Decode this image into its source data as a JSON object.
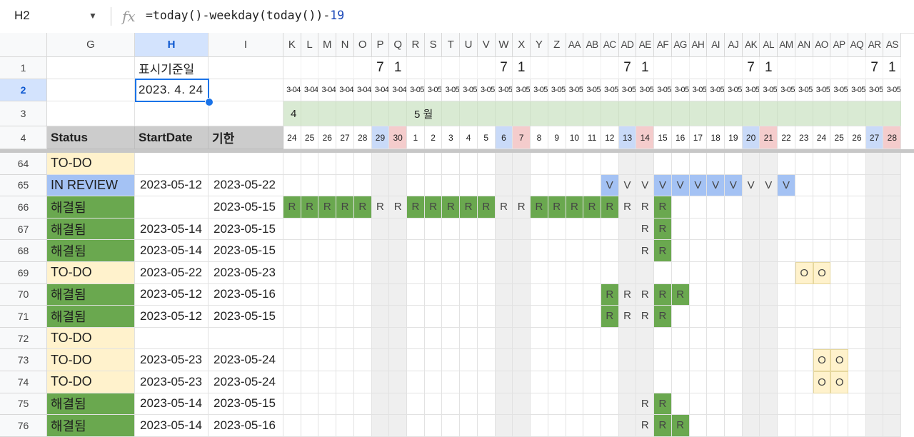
{
  "formula_bar": {
    "name_box": "H2",
    "fx_icon": "fx-icon",
    "formula_prefix": "=today()-weekday(today())-",
    "formula_number": "19"
  },
  "columns": {
    "G": "G",
    "H": "H",
    "I": "I",
    "gantt": [
      "K",
      "L",
      "M",
      "N",
      "O",
      "P",
      "Q",
      "R",
      "S",
      "T",
      "U",
      "V",
      "W",
      "X",
      "Y",
      "Z",
      "AA",
      "AB",
      "AC",
      "AD",
      "AE",
      "AF",
      "AG",
      "AH",
      "AI",
      "AJ",
      "AK",
      "AL",
      "AM",
      "AN",
      "AO",
      "AP",
      "AQ",
      "AR",
      "AS"
    ]
  },
  "header_rows": {
    "row1": {
      "label": "표시기준일",
      "week_marks": [
        "",
        "",
        "",
        "",
        "",
        "7",
        "1",
        "",
        "",
        "",
        "",
        "",
        "7",
        "1",
        "",
        "",
        "",
        "",
        "",
        "7",
        "1",
        "",
        "",
        "",
        "",
        "",
        "7",
        "1",
        "",
        "",
        "",
        "",
        "",
        "7",
        "1"
      ]
    },
    "row2": {
      "base_date": "2023. 4. 24",
      "date_stub_april": "3-04",
      "date_stub_may": "3-05"
    },
    "row3": {
      "month_april": "4",
      "month_may": "5 월"
    },
    "row4": {
      "status": "Status",
      "start": "StartDate",
      "due": "기한",
      "days": [
        "24",
        "25",
        "26",
        "27",
        "28",
        "29",
        "30",
        "1",
        "2",
        "3",
        "4",
        "5",
        "6",
        "7",
        "8",
        "9",
        "10",
        "11",
        "12",
        "13",
        "14",
        "15",
        "16",
        "17",
        "18",
        "19",
        "20",
        "21",
        "22",
        "23",
        "24",
        "25",
        "26",
        "27",
        "28"
      ]
    }
  },
  "colors": {
    "todo": "#fff2cc",
    "in_review": "#a4c2f4",
    "resolved": "#6aa84f",
    "saturday": "#c9daf8",
    "sunday": "#f4cccc",
    "weekend_col": "#efefef",
    "month_band": "#d9ead3",
    "header_bg": "#cccccc",
    "o_mark": "#fff2cc",
    "selection": "#1a73e8"
  },
  "rows": [
    {
      "num": "64",
      "status": "TO-DO",
      "status_key": "todo",
      "start": "",
      "due": "",
      "marks": []
    },
    {
      "num": "65",
      "status": "IN REVIEW",
      "status_key": "in_review",
      "start": "2023-05-12",
      "due": "2023-05-22",
      "marks": [
        {
          "col": "AC",
          "ch": "V",
          "fill": true
        },
        {
          "col": "AD",
          "ch": "V",
          "fill": false
        },
        {
          "col": "AE",
          "ch": "V",
          "fill": false
        },
        {
          "col": "AF",
          "ch": "V",
          "fill": true
        },
        {
          "col": "AG",
          "ch": "V",
          "fill": true
        },
        {
          "col": "AH",
          "ch": "V",
          "fill": true
        },
        {
          "col": "AI",
          "ch": "V",
          "fill": true
        },
        {
          "col": "AJ",
          "ch": "V",
          "fill": true
        },
        {
          "col": "AK",
          "ch": "V",
          "fill": false
        },
        {
          "col": "AL",
          "ch": "V",
          "fill": false
        },
        {
          "col": "AM",
          "ch": "V",
          "fill": true
        }
      ]
    },
    {
      "num": "66",
      "status": "해결됨",
      "status_key": "resolved",
      "start": "",
      "due": "2023-05-15",
      "marks": [
        {
          "col": "K",
          "ch": "R",
          "fill": true
        },
        {
          "col": "L",
          "ch": "R",
          "fill": true
        },
        {
          "col": "M",
          "ch": "R",
          "fill": true
        },
        {
          "col": "N",
          "ch": "R",
          "fill": true
        },
        {
          "col": "O",
          "ch": "R",
          "fill": true
        },
        {
          "col": "P",
          "ch": "R",
          "fill": false
        },
        {
          "col": "Q",
          "ch": "R",
          "fill": false
        },
        {
          "col": "R",
          "ch": "R",
          "fill": true
        },
        {
          "col": "S",
          "ch": "R",
          "fill": true
        },
        {
          "col": "T",
          "ch": "R",
          "fill": true
        },
        {
          "col": "U",
          "ch": "R",
          "fill": true
        },
        {
          "col": "V",
          "ch": "R",
          "fill": true
        },
        {
          "col": "W",
          "ch": "R",
          "fill": false
        },
        {
          "col": "X",
          "ch": "R",
          "fill": false
        },
        {
          "col": "Y",
          "ch": "R",
          "fill": true
        },
        {
          "col": "Z",
          "ch": "R",
          "fill": true
        },
        {
          "col": "AA",
          "ch": "R",
          "fill": true
        },
        {
          "col": "AB",
          "ch": "R",
          "fill": true
        },
        {
          "col": "AC",
          "ch": "R",
          "fill": true
        },
        {
          "col": "AD",
          "ch": "R",
          "fill": false
        },
        {
          "col": "AE",
          "ch": "R",
          "fill": false
        },
        {
          "col": "AF",
          "ch": "R",
          "fill": true
        }
      ]
    },
    {
      "num": "67",
      "status": "해결됨",
      "status_key": "resolved",
      "start": "2023-05-14",
      "due": "2023-05-15",
      "marks": [
        {
          "col": "AE",
          "ch": "R",
          "fill": false
        },
        {
          "col": "AF",
          "ch": "R",
          "fill": true
        }
      ]
    },
    {
      "num": "68",
      "status": "해결됨",
      "status_key": "resolved",
      "start": "2023-05-14",
      "due": "2023-05-15",
      "marks": [
        {
          "col": "AE",
          "ch": "R",
          "fill": false
        },
        {
          "col": "AF",
          "ch": "R",
          "fill": true
        }
      ]
    },
    {
      "num": "69",
      "status": "TO-DO",
      "status_key": "todo",
      "start": "2023-05-22",
      "due": "2023-05-23",
      "marks": [
        {
          "col": "AN",
          "ch": "O",
          "fill": true
        },
        {
          "col": "AO",
          "ch": "O",
          "fill": true
        }
      ]
    },
    {
      "num": "70",
      "status": "해결됨",
      "status_key": "resolved",
      "start": "2023-05-12",
      "due": "2023-05-16",
      "marks": [
        {
          "col": "AC",
          "ch": "R",
          "fill": true
        },
        {
          "col": "AD",
          "ch": "R",
          "fill": false
        },
        {
          "col": "AE",
          "ch": "R",
          "fill": false
        },
        {
          "col": "AF",
          "ch": "R",
          "fill": true
        },
        {
          "col": "AG",
          "ch": "R",
          "fill": true
        }
      ]
    },
    {
      "num": "71",
      "status": "해결됨",
      "status_key": "resolved",
      "start": "2023-05-12",
      "due": "2023-05-15",
      "marks": [
        {
          "col": "AC",
          "ch": "R",
          "fill": true
        },
        {
          "col": "AD",
          "ch": "R",
          "fill": false
        },
        {
          "col": "AE",
          "ch": "R",
          "fill": false
        },
        {
          "col": "AF",
          "ch": "R",
          "fill": true
        }
      ]
    },
    {
      "num": "72",
      "status": "TO-DO",
      "status_key": "todo",
      "start": "",
      "due": "",
      "marks": []
    },
    {
      "num": "73",
      "status": "TO-DO",
      "status_key": "todo",
      "start": "2023-05-23",
      "due": "2023-05-24",
      "marks": [
        {
          "col": "AO",
          "ch": "O",
          "fill": true
        },
        {
          "col": "AP",
          "ch": "O",
          "fill": true
        }
      ]
    },
    {
      "num": "74",
      "status": "TO-DO",
      "status_key": "todo",
      "start": "2023-05-23",
      "due": "2023-05-24",
      "marks": [
        {
          "col": "AO",
          "ch": "O",
          "fill": true
        },
        {
          "col": "AP",
          "ch": "O",
          "fill": true
        }
      ]
    },
    {
      "num": "75",
      "status": "해결됨",
      "status_key": "resolved",
      "start": "2023-05-14",
      "due": "2023-05-15",
      "marks": [
        {
          "col": "AE",
          "ch": "R",
          "fill": false
        },
        {
          "col": "AF",
          "ch": "R",
          "fill": true
        }
      ]
    },
    {
      "num": "76",
      "status": "해결됨",
      "status_key": "resolved",
      "start": "2023-05-14",
      "due": "2023-05-16",
      "marks": [
        {
          "col": "AE",
          "ch": "R",
          "fill": false
        },
        {
          "col": "AF",
          "ch": "R",
          "fill": true
        },
        {
          "col": "AG",
          "ch": "R",
          "fill": true
        }
      ]
    }
  ]
}
